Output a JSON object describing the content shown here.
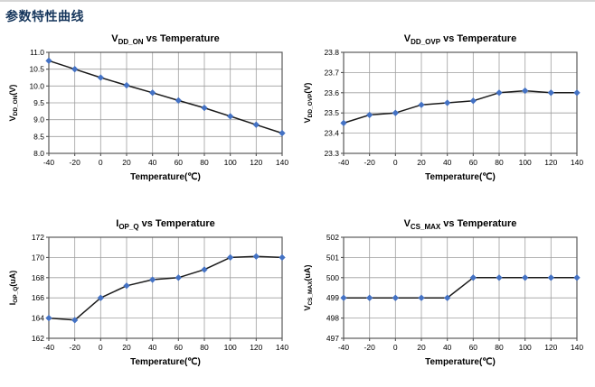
{
  "page": {
    "title": "参数特性曲线"
  },
  "chart_data": [
    {
      "type": "line",
      "title_main": "V",
      "title_sub": "DD_ON",
      "title_rest": " vs Temperature",
      "xlabel": "Temperature(℃)",
      "ylabel_main": "V",
      "ylabel_sub": "DD_ON",
      "ylabel_unit": "(V)",
      "x": [
        -40,
        -20,
        0,
        20,
        40,
        60,
        80,
        100,
        120,
        140
      ],
      "y": [
        10.75,
        10.5,
        10.25,
        10.02,
        9.8,
        9.57,
        9.35,
        9.1,
        8.85,
        8.6
      ],
      "xlim": [
        -40,
        140
      ],
      "xticks": [
        -40,
        -20,
        0,
        20,
        40,
        60,
        80,
        100,
        120,
        140
      ],
      "ylim": [
        8.0,
        11.0
      ],
      "yticks": [
        8.0,
        8.5,
        9.0,
        9.5,
        10.0,
        10.5,
        11.0
      ],
      "ytick_labels": [
        "8.0",
        "8.5",
        "9.0",
        "9.5",
        "10.0",
        "10.5",
        "11.0"
      ],
      "grid": true,
      "legend": false,
      "line_color": "#1a1a1a",
      "marker_color": "#4472c4",
      "marker": "diamond"
    },
    {
      "type": "line",
      "title_main": "V",
      "title_sub": "DD_OVP",
      "title_rest": " vs Temperature",
      "xlabel": "Temperature(℃)",
      "ylabel_main": "V",
      "ylabel_sub": "DD_OVP",
      "ylabel_unit": "(V)",
      "x": [
        -40,
        -20,
        0,
        20,
        40,
        60,
        80,
        100,
        120,
        140
      ],
      "y": [
        23.45,
        23.49,
        23.5,
        23.54,
        23.55,
        23.56,
        23.6,
        23.61,
        23.6,
        23.6
      ],
      "xlim": [
        -40,
        140
      ],
      "xticks": [
        -40,
        -20,
        0,
        20,
        40,
        60,
        80,
        100,
        120,
        140
      ],
      "ylim": [
        23.3,
        23.8
      ],
      "yticks": [
        23.3,
        23.4,
        23.5,
        23.6,
        23.7,
        23.8
      ],
      "ytick_labels": [
        "23.3",
        "23.4",
        "23.5",
        "23.6",
        "23.7",
        "23.8"
      ],
      "grid": true,
      "legend": false,
      "line_color": "#1a1a1a",
      "marker_color": "#4472c4",
      "marker": "diamond"
    },
    {
      "type": "line",
      "title_main": "I",
      "title_sub": "OP_Q",
      "title_rest": " vs Temperature",
      "xlabel": "Temperature(℃)",
      "ylabel_main": "I",
      "ylabel_sub": "OP_Q",
      "ylabel_unit": "(uA)",
      "x": [
        -40,
        -20,
        0,
        20,
        40,
        60,
        80,
        100,
        120,
        140
      ],
      "y": [
        164.0,
        163.8,
        166.0,
        167.2,
        167.8,
        168.0,
        168.8,
        170.0,
        170.1,
        170.0
      ],
      "xlim": [
        -40,
        140
      ],
      "xticks": [
        -40,
        -20,
        0,
        20,
        40,
        60,
        80,
        100,
        120,
        140
      ],
      "ylim": [
        162,
        172
      ],
      "yticks": [
        162,
        164,
        166,
        168,
        170,
        172
      ],
      "ytick_labels": [
        "162",
        "164",
        "166",
        "168",
        "170",
        "172"
      ],
      "grid": true,
      "legend": false,
      "line_color": "#1a1a1a",
      "marker_color": "#4472c4",
      "marker": "diamond"
    },
    {
      "type": "line",
      "title_main": "V",
      "title_sub": "CS_MAX",
      "title_rest": " vs Temperature",
      "xlabel": "Temperature(℃)",
      "ylabel_main": "V",
      "ylabel_sub": "CS_MAX",
      "ylabel_unit": "(uA)",
      "x": [
        -40,
        -20,
        0,
        20,
        40,
        60,
        80,
        100,
        120,
        140
      ],
      "y": [
        499,
        499,
        499,
        499,
        499,
        500,
        500,
        500,
        500,
        500
      ],
      "xlim": [
        -40,
        140
      ],
      "xticks": [
        -40,
        -20,
        0,
        20,
        40,
        60,
        80,
        100,
        120,
        140
      ],
      "ylim": [
        497,
        502
      ],
      "yticks": [
        497,
        498,
        499,
        500,
        501,
        502
      ],
      "ytick_labels": [
        "497",
        "498",
        "499",
        "500",
        "501",
        "502"
      ],
      "grid": true,
      "legend": false,
      "line_color": "#1a1a1a",
      "marker_color": "#4472c4",
      "marker": "diamond"
    }
  ]
}
